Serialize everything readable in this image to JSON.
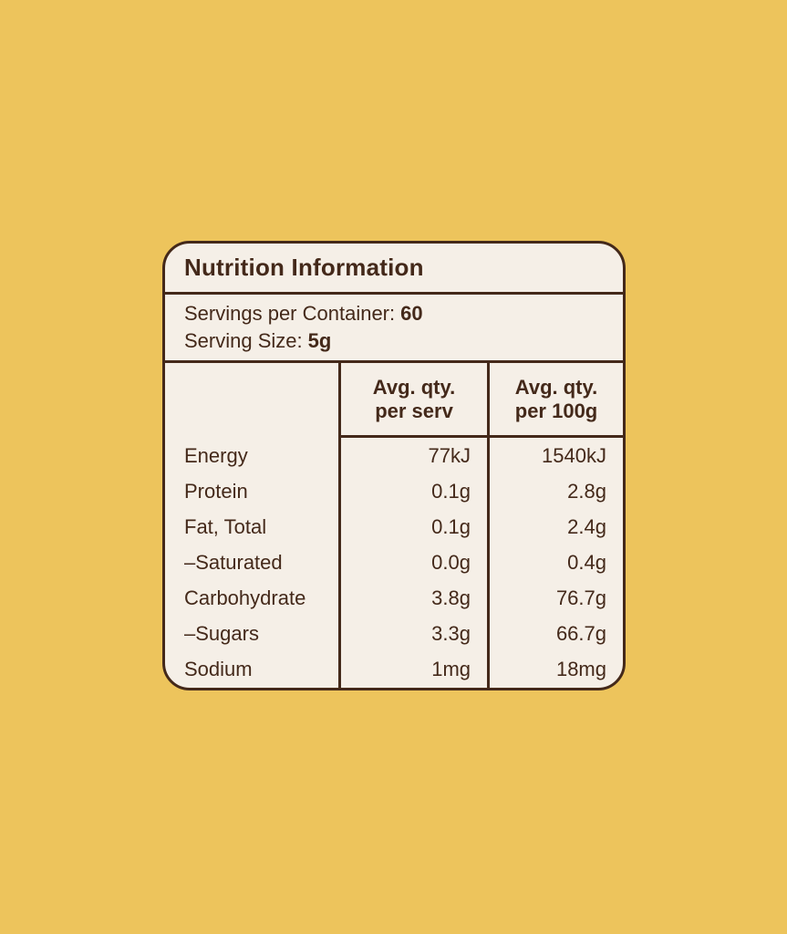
{
  "colors": {
    "background": "#EDC45C",
    "card_background": "#F5EFE7",
    "ink": "#44291A"
  },
  "label": {
    "title": "Nutrition Information",
    "servings": [
      {
        "label": "Servings per Container:",
        "value": "60"
      },
      {
        "label": "Serving Size:",
        "value": "5g"
      }
    ],
    "columns": [
      {
        "line1": "Avg. qty.",
        "line2": "per serv"
      },
      {
        "line1": "Avg. qty.",
        "line2": "per 100g"
      }
    ],
    "rows": [
      {
        "name": "Energy",
        "per_serv": "77kJ",
        "per_100g": "1540kJ"
      },
      {
        "name": "Protein",
        "per_serv": "0.1g",
        "per_100g": "2.8g"
      },
      {
        "name": "Fat, Total",
        "per_serv": "0.1g",
        "per_100g": "2.4g"
      },
      {
        "name": "–Saturated",
        "per_serv": "0.0g",
        "per_100g": "0.4g"
      },
      {
        "name": "Carbohydrate",
        "per_serv": "3.8g",
        "per_100g": "76.7g"
      },
      {
        "name": "–Sugars",
        "per_serv": "3.3g",
        "per_100g": "66.7g"
      },
      {
        "name": "Sodium",
        "per_serv": "1mg",
        "per_100g": "18mg"
      }
    ]
  }
}
